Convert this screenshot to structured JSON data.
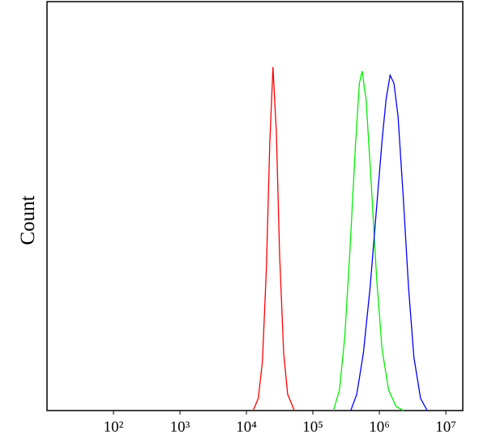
{
  "chart_data": {
    "type": "line",
    "ylabel": "Count",
    "xscale": "log",
    "xlim": [
      10,
      18000000
    ],
    "ylim": [
      0,
      100
    ],
    "xticks": [
      {
        "value": 100,
        "label": "10²"
      },
      {
        "value": 1000,
        "label": "10³"
      },
      {
        "value": 10000,
        "label": "10⁴"
      },
      {
        "value": 100000,
        "label": "10⁵"
      },
      {
        "value": 1000000,
        "label": "10⁶"
      },
      {
        "value": 10000000,
        "label": "10⁷"
      }
    ],
    "series": [
      {
        "color": "#ff0000",
        "x": [
          12600,
          15100,
          17400,
          20000,
          22400,
          25100,
          28200,
          31600,
          36300,
          41700,
          52500
        ],
        "values": [
          0,
          3,
          12,
          35,
          65,
          84,
          68,
          38,
          14,
          4,
          0
        ]
      },
      {
        "color": "#00ee00",
        "x": [
          204000,
          251000,
          302000,
          363000,
          437000,
          501000,
          550000,
          631000,
          759000,
          912000,
          1100000,
          1380000,
          1780000,
          2290000
        ],
        "values": [
          0,
          5,
          18,
          40,
          65,
          80,
          83,
          76,
          55,
          32,
          15,
          5,
          1,
          0
        ]
      },
      {
        "color": "#0000ff",
        "x": [
          372000,
          457000,
          575000,
          724000,
          912000,
          1100000,
          1260000,
          1450000,
          1660000,
          1910000,
          2290000,
          2750000,
          3310000,
          4170000,
          5250000
        ],
        "values": [
          0,
          4,
          14,
          30,
          50,
          66,
          76,
          82,
          80,
          72,
          52,
          30,
          13,
          3,
          0
        ]
      }
    ]
  }
}
